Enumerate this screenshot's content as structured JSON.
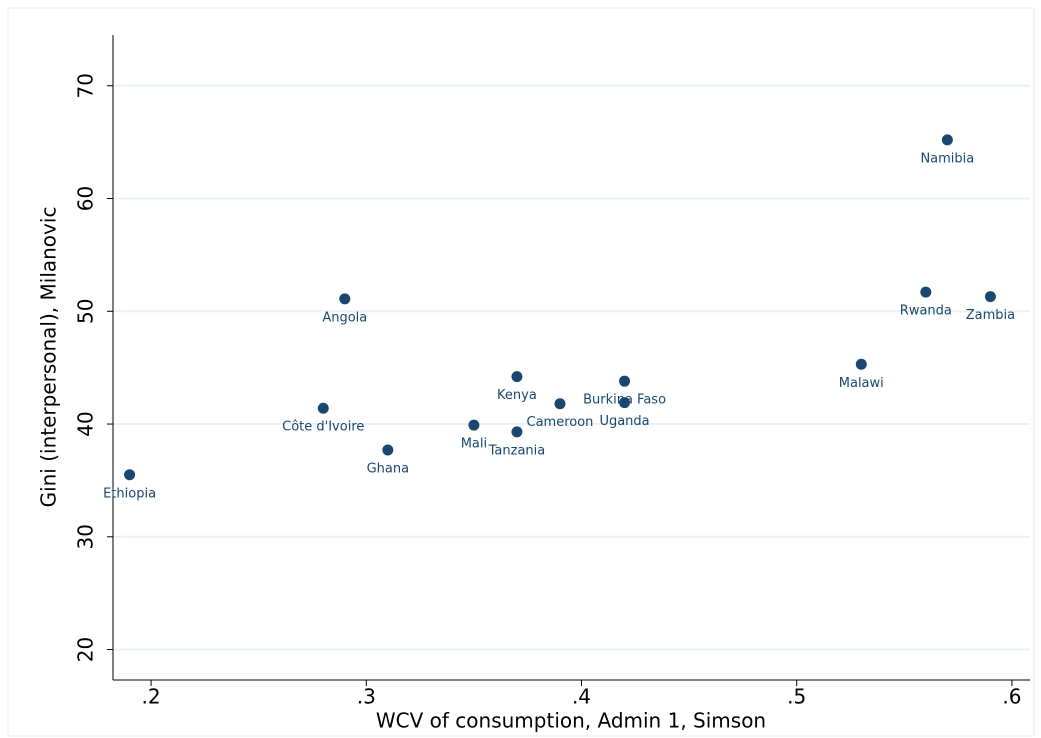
{
  "chart_data": {
    "type": "scatter",
    "x_label": "WCV of consumption, Admin 1, Simson",
    "y_label": "Gini (interpersonal), Milanovic",
    "labels": [
      "Ethiopia",
      "Côte d'Ivoire",
      "Angola",
      "Ghana",
      "Mali",
      "Kenya",
      "Tanzania",
      "Cameroon",
      "Burkina Faso",
      "Uganda",
      "Malawi",
      "Rwanda",
      "Zambia",
      "Namibia"
    ],
    "x": [
      0.19,
      0.28,
      0.29,
      0.31,
      0.35,
      0.37,
      0.37,
      0.39,
      0.42,
      0.42,
      0.53,
      0.56,
      0.59,
      0.57
    ],
    "y": [
      35.5,
      41.4,
      51.1,
      37.7,
      39.9,
      44.2,
      39.3,
      41.8,
      43.8,
      41.9,
      45.3,
      51.7,
      51.3,
      65.2
    ],
    "color": "#1a476f",
    "xlim": [
      0.1823,
      0.6084
    ],
    "ylim": [
      17.3,
      74.5
    ],
    "xticks": [
      {
        "value": 0.2,
        "label": ".2"
      },
      {
        "value": 0.3,
        "label": ".3"
      },
      {
        "value": 0.4,
        "label": ".4"
      },
      {
        "value": 0.5,
        "label": ".5"
      },
      {
        "value": 0.6,
        "label": ".6"
      }
    ],
    "yticks": [
      20,
      30,
      40,
      50,
      60,
      70
    ],
    "grid": true
  }
}
